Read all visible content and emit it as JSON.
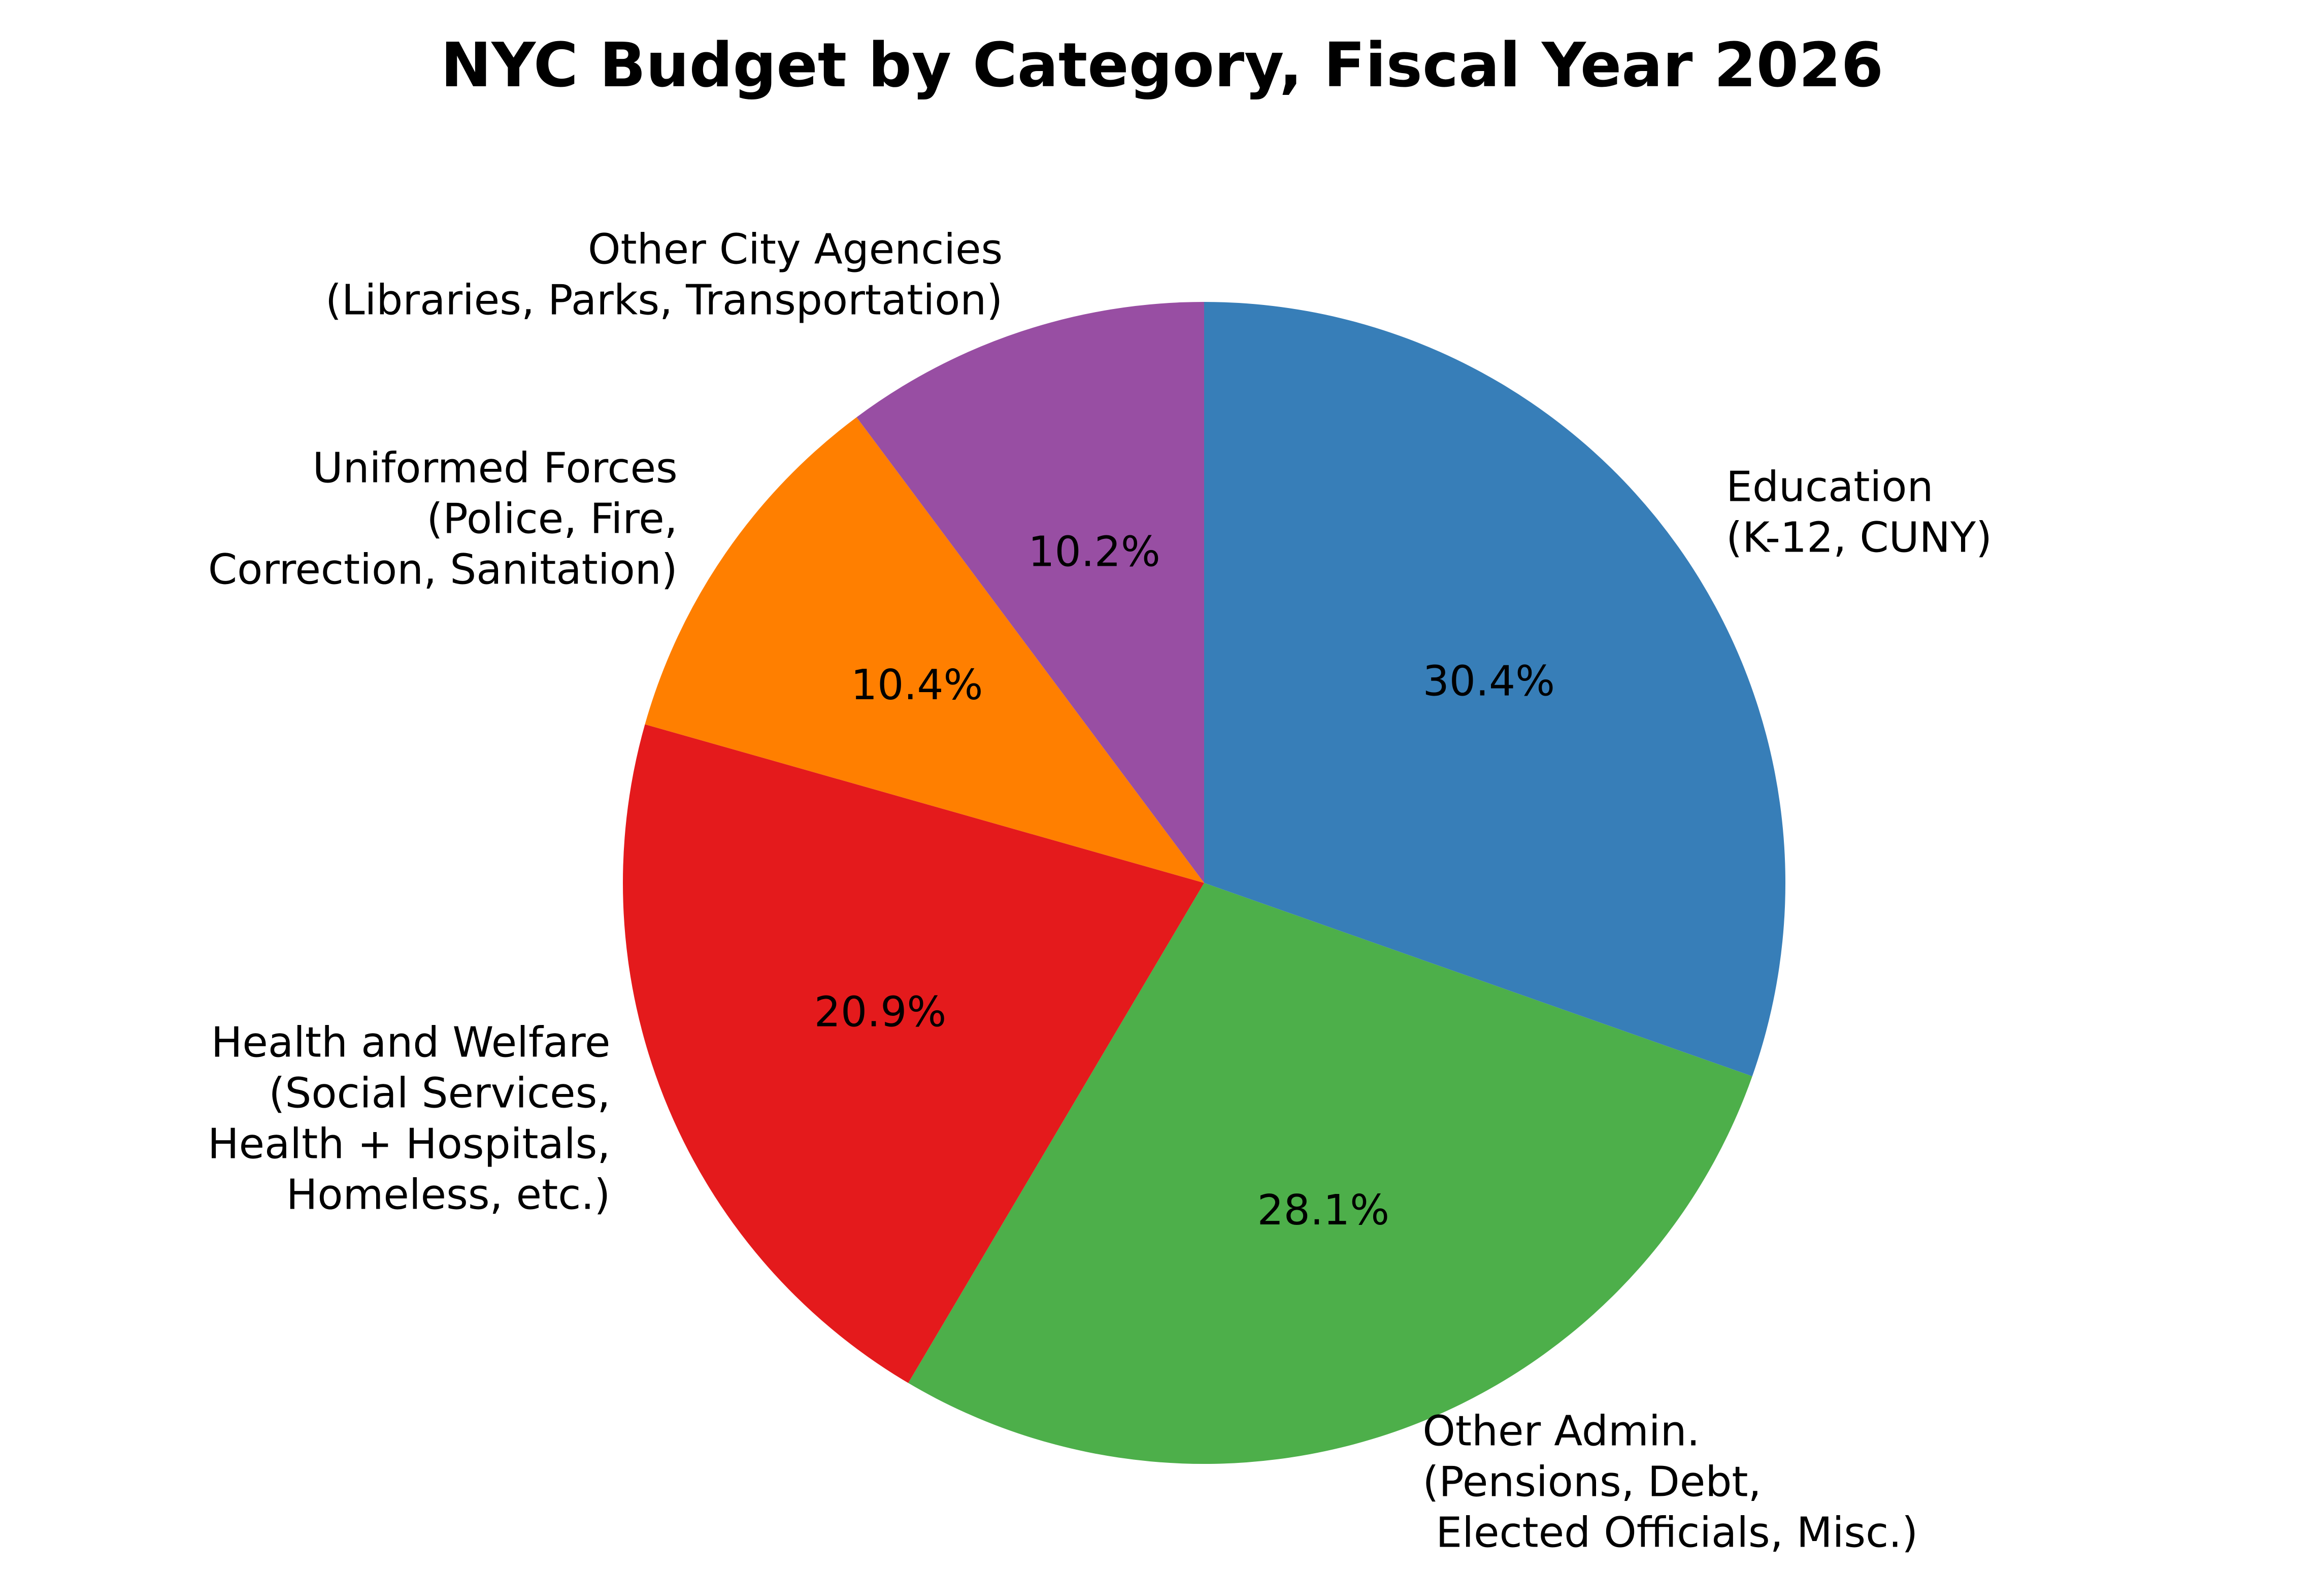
{
  "chart_data": {
    "type": "pie",
    "title": "NYC Budget by Category, Fiscal Year 2026",
    "start_angle_deg": 90,
    "direction": "clockwise",
    "slices": [
      {
        "label_lines": [
          "Education",
          "(K-12, CUNY)"
        ],
        "value": 30.4,
        "pct_label": "30.4%",
        "color": "#377eb8",
        "label_align": "start"
      },
      {
        "label_lines": [
          "Other Admin.",
          "(Pensions, Debt,",
          " Elected Officials, Misc.)"
        ],
        "value": 28.1,
        "pct_label": "28.1%",
        "color": "#4daf4a",
        "label_align": "start"
      },
      {
        "label_lines": [
          "Health and Welfare",
          "(Social Services,",
          "Health + Hospitals,",
          "Homeless, etc.)"
        ],
        "value": 20.9,
        "pct_label": "20.9%",
        "color": "#e41a1c",
        "label_align": "end"
      },
      {
        "label_lines": [
          "Uniformed Forces",
          "(Police, Fire,",
          "Correction, Sanitation)"
        ],
        "value": 10.4,
        "pct_label": "10.4%",
        "color": "#ff7f00",
        "label_align": "end"
      },
      {
        "label_lines": [
          "Other City Agencies",
          "(Libraries, Parks, Transportation)"
        ],
        "value": 10.2,
        "pct_label": "10.2%",
        "color": "#984ea3",
        "label_align": "end"
      }
    ]
  }
}
